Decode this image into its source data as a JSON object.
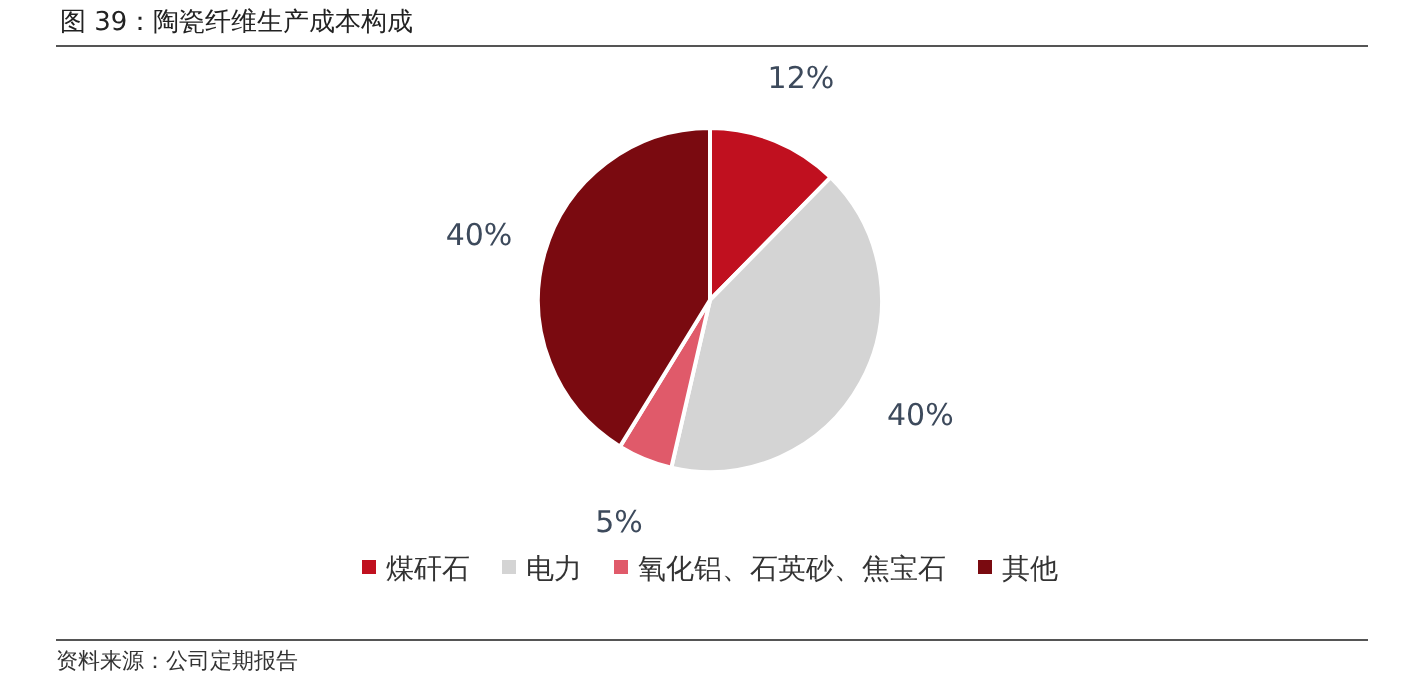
{
  "chart_data": {
    "type": "pie",
    "title": "图 39：陶瓷纤维生产成本构成",
    "categories": [
      "煤矸石",
      "电力",
      "氧化铝、石英砂、焦宝石",
      "其他"
    ],
    "values": [
      12,
      40,
      5,
      40
    ],
    "colors": [
      "#c0101f",
      "#d4d4d4",
      "#e05a6a",
      "#7a0a10"
    ],
    "value_labels": [
      "12%",
      "40%",
      "5%",
      "40%"
    ],
    "legend": "bottom",
    "annotations": [
      "资料来源：公司定期报告"
    ]
  }
}
